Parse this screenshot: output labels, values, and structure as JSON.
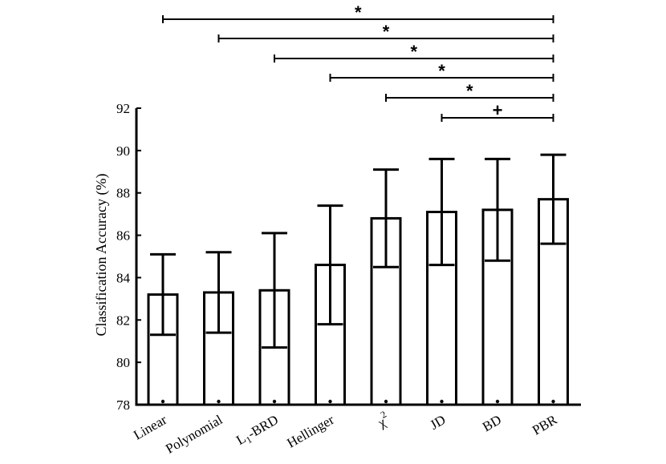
{
  "chart_data": {
    "type": "bar",
    "title": "",
    "xlabel": "",
    "ylabel": "Classification Accuracy (%)",
    "ylim": [
      78,
      92
    ],
    "yticks": [
      78,
      80,
      82,
      84,
      86,
      88,
      90,
      92
    ],
    "ytick_labels": [
      "78",
      "80",
      "82",
      "84",
      "86",
      "88",
      "90",
      "92"
    ],
    "categories": [
      "Linear",
      "Polynomial",
      "L1-BRD",
      "Hellinger",
      "χ2",
      "JD",
      "BD",
      "PBR"
    ],
    "category_labels": [
      {
        "main": "Linear",
        "sub": "",
        "sup": ""
      },
      {
        "main": "Polynomial",
        "sub": "",
        "sup": ""
      },
      {
        "main": "L",
        "sub": "1",
        "sup": "",
        "rest": "-BRD"
      },
      {
        "main": "Hellinger",
        "sub": "",
        "sup": ""
      },
      {
        "main": "χ",
        "sub": "",
        "sup": "2"
      },
      {
        "main": "JD",
        "sub": "",
        "sup": ""
      },
      {
        "main": "BD",
        "sub": "",
        "sup": ""
      },
      {
        "main": "PBR",
        "sub": "",
        "sup": ""
      }
    ],
    "values": [
      83.2,
      83.3,
      83.4,
      84.6,
      86.8,
      87.1,
      87.2,
      87.7
    ],
    "error_lower": [
      81.3,
      81.4,
      80.7,
      81.8,
      84.5,
      84.6,
      84.8,
      85.6
    ],
    "error_upper": [
      85.1,
      85.2,
      86.1,
      87.4,
      89.1,
      89.6,
      89.6,
      89.8
    ],
    "significance": [
      {
        "from": "Linear",
        "to": "PBR",
        "mark": "*"
      },
      {
        "from": "Polynomial",
        "to": "PBR",
        "mark": "*"
      },
      {
        "from": "L1-BRD",
        "to": "PBR",
        "mark": "*"
      },
      {
        "from": "Hellinger",
        "to": "PBR",
        "mark": "*"
      },
      {
        "from": "χ2",
        "to": "PBR",
        "mark": "*"
      },
      {
        "from": "JD",
        "to": "PBR",
        "mark": "+"
      }
    ]
  }
}
